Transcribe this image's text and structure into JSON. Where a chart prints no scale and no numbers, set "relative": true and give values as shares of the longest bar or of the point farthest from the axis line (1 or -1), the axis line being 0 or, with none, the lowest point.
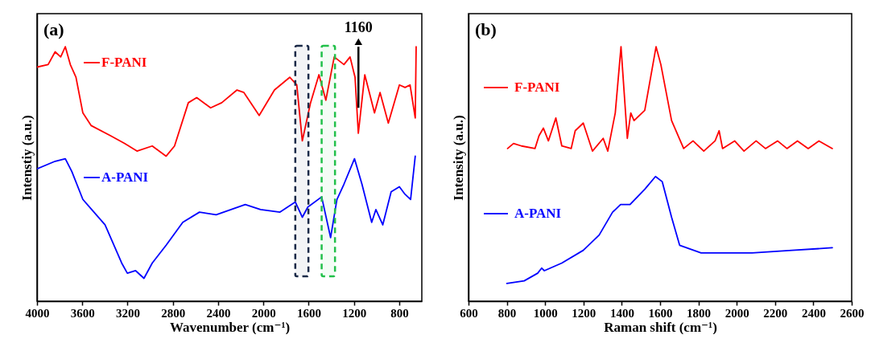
{
  "chart_data": [
    {
      "type": "line",
      "title": "(a)",
      "legend": "top left",
      "xlabel": "Wavenumber (cm⁻¹)",
      "ylabel": "Intenstiy (a.u.)",
      "relative": true,
      "tick_labels": "x",
      "xlim": [
        4000,
        600
      ],
      "xticks": [
        4000,
        3600,
        3200,
        2800,
        2400,
        2000,
        1600,
        1200,
        800
      ],
      "series": [
        {
          "name": "F-PANI",
          "color": "#ff0000",
          "x": [
            4000,
            3902,
            3840,
            3791,
            3750,
            3706,
            3656,
            3595,
            3521,
            3350,
            3227,
            3117,
            2982,
            2859,
            2785,
            2663,
            2589,
            2466,
            2368,
            2233,
            2172,
            2037,
            1902,
            1767,
            1705,
            1656,
            1583,
            1509,
            1448,
            1374,
            1288,
            1234,
            1190,
            1161,
            1104,
            1018,
            969,
            896,
            798,
            748,
            704,
            658,
            650
          ],
          "values": [
            0.92,
            0.93,
            0.98,
            0.96,
            1.0,
            0.93,
            0.88,
            0.74,
            0.69,
            0.65,
            0.62,
            0.59,
            0.61,
            0.57,
            0.61,
            0.78,
            0.8,
            0.76,
            0.78,
            0.83,
            0.82,
            0.73,
            0.83,
            0.88,
            0.85,
            0.63,
            0.78,
            0.89,
            0.79,
            0.96,
            0.93,
            0.96,
            0.88,
            0.66,
            0.89,
            0.74,
            0.82,
            0.7,
            0.85,
            0.84,
            0.85,
            0.72,
            1.0
          ]
        },
        {
          "name": "A-PANI",
          "color": "#0000ff",
          "x": [
            4000,
            3840,
            3750,
            3693,
            3595,
            3399,
            3252,
            3202,
            3129,
            3055,
            2982,
            2859,
            2712,
            2565,
            2417,
            2160,
            2025,
            1853,
            1718,
            1656,
            1607,
            1485,
            1406,
            1350,
            1288,
            1195,
            1129,
            1043,
            1006,
            945,
            871,
            798,
            748,
            699,
            658
          ],
          "values": [
            0.52,
            0.55,
            0.56,
            0.51,
            0.4,
            0.3,
            0.15,
            0.11,
            0.12,
            0.09,
            0.15,
            0.22,
            0.31,
            0.35,
            0.34,
            0.38,
            0.36,
            0.35,
            0.39,
            0.33,
            0.37,
            0.41,
            0.25,
            0.4,
            0.46,
            0.56,
            0.46,
            0.31,
            0.36,
            0.3,
            0.43,
            0.45,
            0.42,
            0.4,
            0.57
          ]
        }
      ],
      "bands": [
        {
          "axis": "x",
          "from": 1718,
          "to": 1602,
          "color": "#1b2a48"
        },
        {
          "axis": "x",
          "from": 1485,
          "to": 1367,
          "color": "#22c04a"
        }
      ],
      "annotations": [
        {
          "text": "1160",
          "x": 1160,
          "y": 1.02
        }
      ]
    },
    {
      "type": "line",
      "title": "(b)",
      "legend": "left",
      "xlabel": "Raman shift (cm⁻¹)",
      "ylabel": "Intensity (a.u.)",
      "relative": true,
      "tick_labels": "x",
      "xlim": [
        600,
        2600
      ],
      "xticks": [
        600,
        800,
        1000,
        1200,
        1400,
        1600,
        1800,
        2000,
        2200,
        2400,
        2600
      ],
      "series": [
        {
          "name": "F-PANI",
          "color": "#ff0000",
          "x": [
            804,
            835,
            877,
            947,
            968,
            991,
            1017,
            1056,
            1087,
            1136,
            1157,
            1199,
            1247,
            1303,
            1327,
            1366,
            1396,
            1429,
            1447,
            1464,
            1520,
            1579,
            1604,
            1660,
            1723,
            1772,
            1828,
            1887,
            1908,
            1926,
            1989,
            2038,
            2101,
            2150,
            2213,
            2262,
            2317,
            2373,
            2429,
            2499
          ],
          "values": [
            0.6,
            0.62,
            0.61,
            0.6,
            0.65,
            0.68,
            0.63,
            0.72,
            0.61,
            0.6,
            0.67,
            0.7,
            0.59,
            0.64,
            0.59,
            0.74,
            1.0,
            0.64,
            0.74,
            0.71,
            0.75,
            1.0,
            0.93,
            0.71,
            0.6,
            0.63,
            0.59,
            0.63,
            0.67,
            0.6,
            0.63,
            0.59,
            0.63,
            0.6,
            0.63,
            0.6,
            0.63,
            0.6,
            0.63,
            0.6
          ]
        },
        {
          "name": "A-PANI",
          "color": "#0000ff",
          "x": [
            800,
            891,
            961,
            982,
            996,
            1087,
            1199,
            1282,
            1352,
            1394,
            1443,
            1520,
            1576,
            1611,
            1660,
            1702,
            1814,
            2080,
            2289,
            2499
          ],
          "values": [
            0.07,
            0.08,
            0.11,
            0.13,
            0.12,
            0.15,
            0.2,
            0.26,
            0.35,
            0.38,
            0.38,
            0.44,
            0.49,
            0.47,
            0.33,
            0.22,
            0.19,
            0.19,
            0.2,
            0.21
          ]
        }
      ]
    }
  ]
}
